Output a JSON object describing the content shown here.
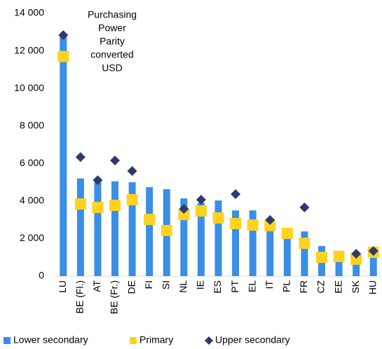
{
  "chart_data": {
    "type": "bar",
    "annotation": [
      "Purchasing",
      "Power",
      "Parity",
      "converted",
      "USD"
    ],
    "categories": [
      "LU",
      "BE (Fl.)",
      "AT",
      "BE (Fr.)",
      "DE",
      "FI",
      "SI",
      "NL",
      "IE",
      "ES",
      "PT",
      "EL",
      "IT",
      "PL",
      "FR",
      "CZ",
      "EE",
      "SK",
      "HU"
    ],
    "series": [
      {
        "name": "Lower secondary",
        "color": "#3a8ee6",
        "mark": "bar",
        "values": [
          12800,
          5200,
          5000,
          5050,
          5000,
          4740,
          4630,
          4140,
          3900,
          4030,
          3500,
          3500,
          2800,
          2300,
          2380,
          1600,
          1050,
          900,
          1400
        ]
      },
      {
        "name": "Primary",
        "color": "#ffd21f",
        "mark": "square",
        "values": [
          11700,
          3840,
          3660,
          3770,
          4070,
          3020,
          2430,
          3280,
          3470,
          3100,
          2800,
          2720,
          2690,
          2280,
          1750,
          1000,
          1050,
          900,
          1270
        ]
      },
      {
        "name": "Upper secondary",
        "color": "#2e3a6e",
        "mark": "diamond",
        "values": [
          12840,
          6340,
          5110,
          6160,
          5600,
          null,
          null,
          3580,
          4070,
          null,
          4370,
          null,
          2990,
          null,
          3660,
          null,
          null,
          1190,
          1340
        ]
      }
    ],
    "ylim": [
      0,
      14000
    ],
    "yticks": [
      0,
      {
        "value": 2000,
        "label": "2 000"
      },
      {
        "value": 4000,
        "label": "4 000"
      },
      {
        "value": 6000,
        "label": "6 000"
      },
      {
        "value": 8000,
        "label": "8 000"
      },
      {
        "value": 10000,
        "label": "10 000"
      },
      {
        "value": 12000,
        "label": "12 000"
      },
      {
        "value": 14000,
        "label": "14 000"
      }
    ],
    "legend": "bottom"
  }
}
